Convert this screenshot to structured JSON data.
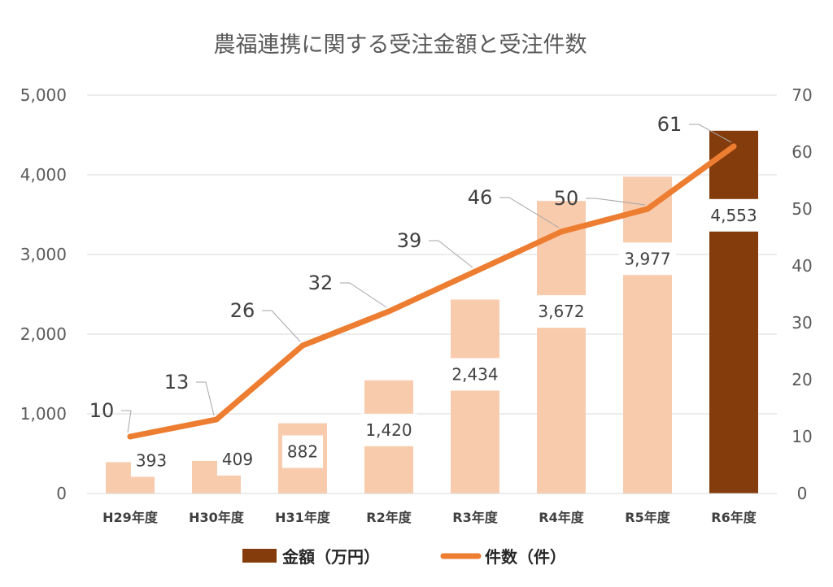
{
  "chart_data": {
    "type": "bar+line",
    "title": "農福連携に関する受注金額と受注件数",
    "categories": [
      "H29年度",
      "H30年度",
      "H31年度",
      "R2年度",
      "R3年度",
      "R4年度",
      "R5年度",
      "R6年度"
    ],
    "series": [
      {
        "name": "金額（万円）",
        "type": "bar",
        "axis": "left",
        "values": [
          393,
          409,
          882,
          1420,
          2434,
          3672,
          3977,
          4553
        ],
        "value_labels": [
          "393",
          "409",
          "882",
          "1,420",
          "2,434",
          "3,672",
          "3,977",
          "4,553"
        ],
        "color": "#F8CBAD",
        "highlight_color": "#843C0C",
        "highlight_index": 7
      },
      {
        "name": "件数（件）",
        "type": "line",
        "axis": "right",
        "values": [
          10,
          13,
          26,
          32,
          39,
          46,
          50,
          61
        ],
        "value_labels": [
          "10",
          "13",
          "26",
          "32",
          "39",
          "46",
          "50",
          "61"
        ],
        "color": "#ED7D31"
      }
    ],
    "y_left": {
      "min": 0,
      "max": 5000,
      "ticks": [
        0,
        1000,
        2000,
        3000,
        4000,
        5000
      ],
      "tick_labels": [
        "0",
        "1,000",
        "2,000",
        "3,000",
        "4,000",
        "5,000"
      ]
    },
    "y_right": {
      "min": 0,
      "max": 70,
      "ticks": [
        0,
        10,
        20,
        30,
        40,
        50,
        60,
        70
      ],
      "tick_labels": [
        "0",
        "10",
        "20",
        "30",
        "40",
        "50",
        "60",
        "70"
      ]
    },
    "grid": true,
    "gridline_color": "#D9D9D9",
    "legend": "bottom"
  }
}
